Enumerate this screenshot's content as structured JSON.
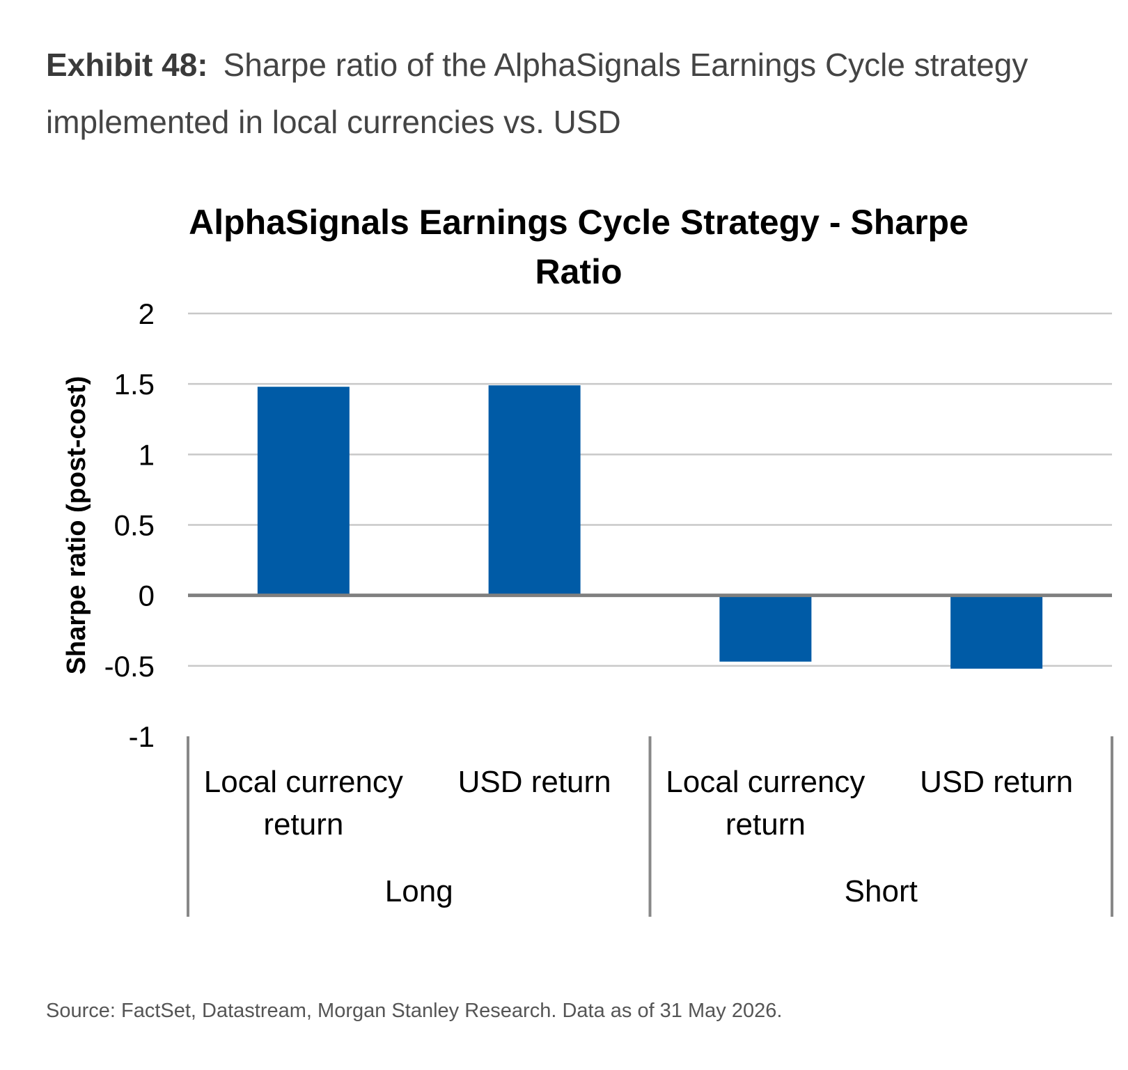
{
  "exhibit": {
    "label": "Exhibit 48:",
    "caption": "Sharpe ratio of the AlphaSignals Earnings Cycle strategy implemented in local currencies vs. USD"
  },
  "chart_data": {
    "type": "bar",
    "title_lines": [
      "AlphaSignals Earnings Cycle Strategy - Sharpe",
      "Ratio"
    ],
    "ylabel": "Sharpe ratio (post-cost)",
    "xlabel": "",
    "ylim": [
      -1,
      2
    ],
    "yticks": [
      2,
      1.5,
      1,
      0.5,
      0,
      -0.5,
      -1
    ],
    "ytick_labels": [
      "2",
      "1.5",
      "1",
      "0.5",
      "0",
      "-0.5",
      "-1"
    ],
    "grid": true,
    "legend": "none",
    "bar_color": "#005BA6",
    "categories": [
      {
        "lines": [
          "Local currency",
          "return"
        ],
        "group": "Long",
        "value": 1.48
      },
      {
        "lines": [
          "USD return"
        ],
        "group": "Long",
        "value": 1.49
      },
      {
        "lines": [
          "Local currency",
          "return"
        ],
        "group": "Short",
        "value": -0.47
      },
      {
        "lines": [
          "USD return"
        ],
        "group": "Short",
        "value": -0.52
      }
    ],
    "groups": [
      "Long",
      "Short"
    ]
  },
  "footer": {
    "source": "Source: FactSet, Datastream, Morgan Stanley Research. Data as of 31 May 2026."
  }
}
